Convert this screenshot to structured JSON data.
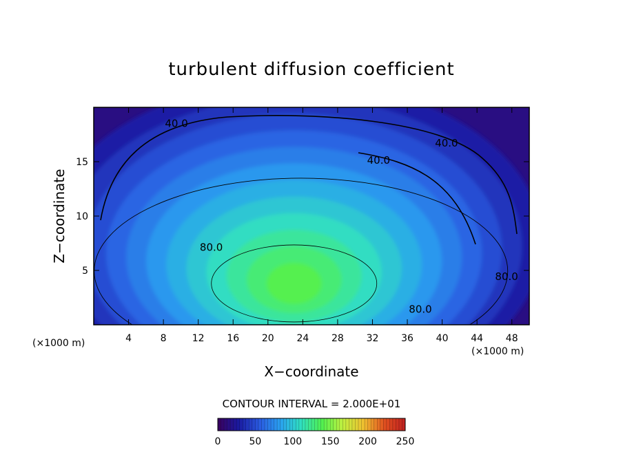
{
  "chart_data": {
    "type": "heatmap",
    "title": "turbulent diffusion coefficient",
    "xlabel": "X−coordinate",
    "ylabel": "Z−coordinate",
    "x_unit": "(×1000 m)",
    "y_unit": "(×1000 m)",
    "xlim": [
      0,
      50
    ],
    "ylim": [
      0,
      20
    ],
    "x_ticks": [
      4,
      8,
      12,
      16,
      20,
      24,
      28,
      32,
      36,
      40,
      44,
      48
    ],
    "y_ticks": [
      5,
      10,
      15
    ],
    "contour_interval_text": "CONTOUR INTERVAL = 2.000E+01",
    "contour_labels": [
      {
        "text": "40.0",
        "x": 9.5,
        "y": 18.2
      },
      {
        "text": "40.0",
        "x": 40.5,
        "y": 16.4
      },
      {
        "text": "40.0",
        "x": 32.7,
        "y": 14.8
      },
      {
        "text": "80.0",
        "x": 13.5,
        "y": 6.8
      },
      {
        "text": "80.0",
        "x": 37.5,
        "y": 1.1
      },
      {
        "text": "80.0",
        "x": 47.4,
        "y": 4.1
      }
    ],
    "colorbar": {
      "min": 0,
      "max": 250,
      "ticks": [
        0,
        50,
        100,
        150,
        200,
        250
      ],
      "colors": [
        "#3a005e",
        "#1a1aa0",
        "#2a5ae0",
        "#2aa0f0",
        "#30e0c0",
        "#50f050",
        "#c0f040",
        "#f0c030",
        "#e05020",
        "#c02020"
      ]
    },
    "field": {
      "center": [
        23,
        3.8
      ],
      "peak_value": 140,
      "top_value": 15,
      "core_contour_value": 120
    }
  }
}
